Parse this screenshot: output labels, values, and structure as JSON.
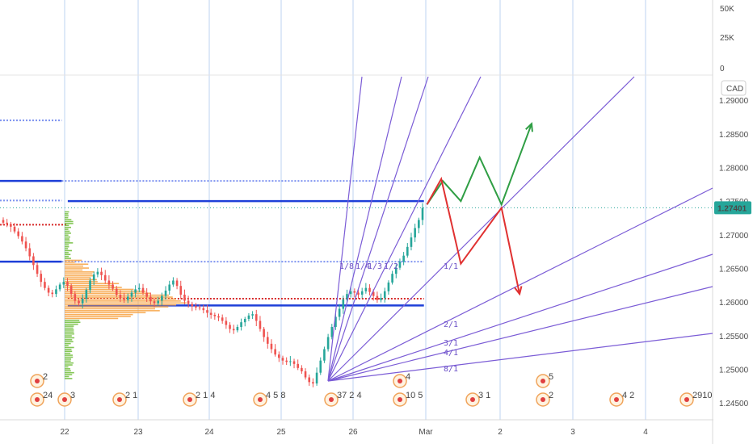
{
  "chart_data": {
    "type": "candlestick",
    "symbol_currency": "CAD",
    "current_price": "1.27401",
    "x_tick_labels": [
      "22",
      "23",
      "24",
      "25",
      "26",
      "Mar",
      "2",
      "3",
      "4"
    ],
    "y_tick_labels": [
      "1.29000",
      "1.28500",
      "1.28000",
      "1.27500",
      "1.27000",
      "1.26500",
      "1.26000",
      "1.25500",
      "1.25000",
      "1.24500"
    ],
    "y_ticks": [
      1.29,
      1.285,
      1.28,
      1.275,
      1.27,
      1.265,
      1.26,
      1.255,
      1.25,
      1.245
    ],
    "ylim": [
      1.2425,
      1.2935
    ],
    "volume": {
      "tick_labels": [
        "50K",
        "25K",
        "0"
      ],
      "ticks": [
        50000,
        25000,
        0
      ],
      "wave_labels": [
        "4",
        "3",
        "5",
        "3"
      ]
    },
    "close_series": [
      1.2718,
      1.2716,
      1.2712,
      1.2705,
      1.2698,
      1.269,
      1.268,
      1.2668,
      1.2655,
      1.2642,
      1.263,
      1.2621,
      1.2614,
      1.2612,
      1.2619,
      1.2626,
      1.263,
      1.2624,
      1.2612,
      1.2602,
      1.2598,
      1.2605,
      1.2618,
      1.2632,
      1.2641,
      1.2645,
      1.264,
      1.2632,
      1.2626,
      1.262,
      1.2611,
      1.2606,
      1.2603,
      1.2608,
      1.2614,
      1.2619,
      1.2621,
      1.2614,
      1.2608,
      1.2601,
      1.2598,
      1.2602,
      1.2609,
      1.2617,
      1.2626,
      1.2632,
      1.2624,
      1.2611,
      1.2602,
      1.2597,
      1.2594,
      1.2592,
      1.2591,
      1.2588,
      1.2584,
      1.2581,
      1.2579,
      1.2577,
      1.2572,
      1.2566,
      1.256,
      1.2558,
      1.2563,
      1.257,
      1.2575,
      1.258,
      1.2582,
      1.2572,
      1.256,
      1.2548,
      1.2538,
      1.253,
      1.2522,
      1.2517,
      1.2513,
      1.2511,
      1.2512,
      1.2508,
      1.2502,
      1.2497,
      1.2488,
      1.2481,
      1.2479,
      1.2495,
      1.2513,
      1.253,
      1.2548,
      1.2563,
      1.2578,
      1.259,
      1.2604,
      1.2612,
      1.2616,
      1.2614,
      1.2611,
      1.2616,
      1.2621,
      1.2615,
      1.2609,
      1.2603,
      1.2606,
      1.2616,
      1.2629,
      1.2642,
      1.2651,
      1.266,
      1.2669,
      1.2682,
      1.2696,
      1.271,
      1.2722,
      1.274
    ],
    "horizontal_levels": [
      {
        "price": 1.278,
        "style": "solid",
        "color": "#1e3fd8",
        "from": "left",
        "to": 0.082
      },
      {
        "price": 1.278,
        "style": "dotted",
        "color": "#7e93f0",
        "from": 0.082,
        "to": 0.563
      },
      {
        "price": 1.287,
        "style": "dotted",
        "color": "#7e93f0",
        "from": "left",
        "to": 0.082
      },
      {
        "price": 1.275,
        "style": "solid",
        "color": "#1e3fd8",
        "from": 0.09,
        "to": 0.563
      },
      {
        "price": 1.2751,
        "style": "dotted",
        "color": "#7e93f0",
        "from": "left",
        "to": 0.082
      },
      {
        "price": 1.266,
        "style": "solid",
        "color": "#1e3fd8",
        "from": "left",
        "to": 0.082
      },
      {
        "price": 1.266,
        "style": "dotted",
        "color": "#7e93f0",
        "from": 0.082,
        "to": 0.563
      },
      {
        "price": 1.2595,
        "style": "solid",
        "color": "#1e3fd8",
        "from": 0.09,
        "to": 0.563
      },
      {
        "price": 1.2715,
        "style": "dotted",
        "color": "#d62828",
        "from": "left",
        "to": 0.09
      },
      {
        "price": 1.2605,
        "style": "dotted",
        "color": "#d62828",
        "from": 0.09,
        "to": 0.563
      }
    ],
    "gann_fan_labels": [
      "1/8",
      "1/4",
      "1/3",
      "1/2",
      "1/1",
      "2/1",
      "3/1",
      "4/1",
      "8/1"
    ],
    "projection_paths": [
      {
        "color": "#2f9e44",
        "points": [
          [
            0.567,
            1.2745
          ],
          [
            0.588,
            1.278
          ],
          [
            0.612,
            1.275
          ],
          [
            0.637,
            1.2815
          ],
          [
            0.666,
            1.2745
          ],
          [
            0.706,
            1.2865
          ]
        ]
      },
      {
        "color": "#e03131",
        "points": [
          [
            0.567,
            1.2745
          ],
          [
            0.586,
            1.2783
          ],
          [
            0.612,
            1.2657
          ],
          [
            0.666,
            1.274
          ],
          [
            0.69,
            1.2612
          ]
        ]
      }
    ],
    "event_marker_counts": [
      "2",
      "24",
      "3",
      "2 1",
      "2 1 4",
      "4 5 8",
      "37 2 4",
      "4",
      "10 5",
      "3 1",
      "5",
      "2",
      "4 2",
      "2910"
    ],
    "volume_profile": "horizontal volume histogram (orange, green) centered near 1.2600"
  }
}
